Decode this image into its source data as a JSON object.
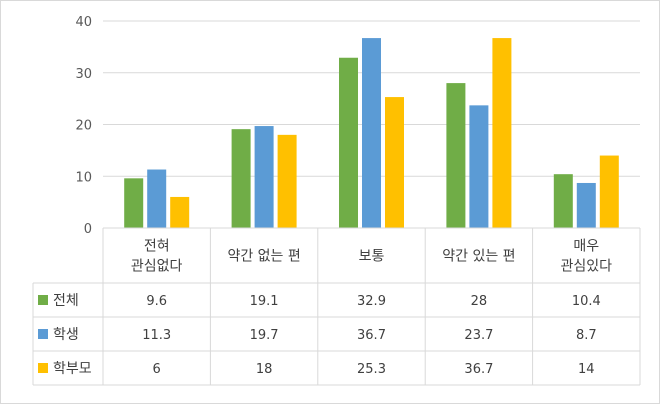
{
  "chart_data": {
    "type": "bar",
    "categories": [
      [
        "전혀",
        "관심없다"
      ],
      [
        "약간 없는 편"
      ],
      [
        "보통"
      ],
      [
        "약간 있는 편"
      ],
      [
        "매우",
        "관심있다"
      ]
    ],
    "series": [
      {
        "name": "전체",
        "color": "#70ad47",
        "values": [
          9.6,
          19.1,
          32.9,
          28,
          10.4
        ]
      },
      {
        "name": "학생",
        "color": "#5b9bd5",
        "values": [
          11.3,
          19.7,
          36.7,
          23.7,
          8.7
        ]
      },
      {
        "name": "학부모",
        "color": "#ffc000",
        "values": [
          6,
          18,
          25.3,
          36.7,
          14
        ]
      }
    ],
    "ylim": [
      0,
      40
    ],
    "yticks": [
      0,
      10,
      20,
      30,
      40
    ],
    "grid": true,
    "data_table": true
  }
}
